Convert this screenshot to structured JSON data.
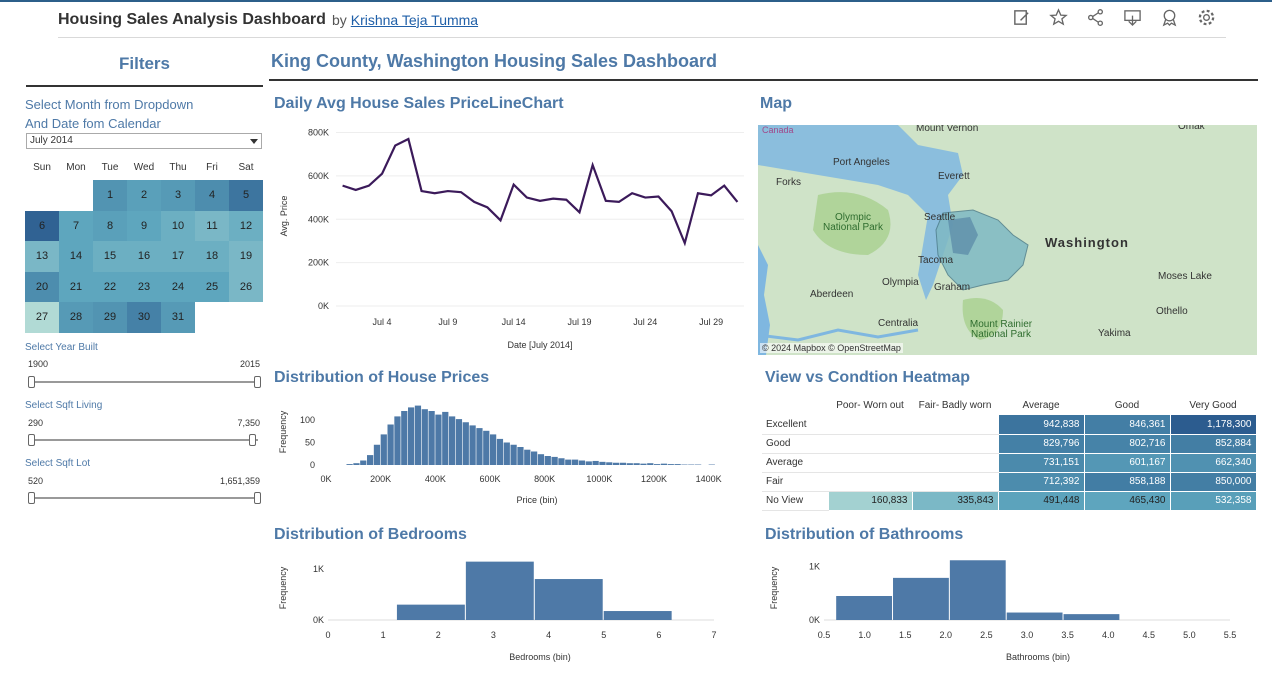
{
  "header": {
    "title": "Housing Sales Analysis Dashboard",
    "by": "by",
    "author": "Krishna Teja Tumma"
  },
  "toolbar": {
    "icons": [
      "edit-icon",
      "favorite-icon",
      "share-icon",
      "download-icon",
      "metrics-icon",
      "settings-icon"
    ]
  },
  "filters": {
    "title": "Filters",
    "month_label_line1": "Select Month from Dropdown",
    "month_label_line2": "And Date fom Calendar",
    "month_value": "July 2014",
    "calendar": {
      "days": [
        "Sun",
        "Mon",
        "Tue",
        "Wed",
        "Thu",
        "Fri",
        "Sat"
      ],
      "start_offset": 2,
      "dates": [
        "1",
        "2",
        "3",
        "4",
        "5",
        "6",
        "7",
        "8",
        "9",
        "10",
        "11",
        "12",
        "13",
        "14",
        "15",
        "16",
        "17",
        "18",
        "19",
        "20",
        "21",
        "22",
        "23",
        "24",
        "25",
        "26",
        "27",
        "28",
        "29",
        "30",
        "31"
      ],
      "intensity": [
        0.55,
        0.45,
        0.5,
        0.6,
        0.8,
        0.95,
        0.4,
        0.45,
        0.4,
        0.35,
        0.3,
        0.35,
        0.3,
        0.4,
        0.35,
        0.35,
        0.35,
        0.35,
        0.3,
        0.6,
        0.4,
        0.4,
        0.4,
        0.4,
        0.4,
        0.3,
        0.1,
        0.5,
        0.55,
        0.7,
        0.5
      ]
    },
    "year_built": {
      "label": "Select Year Built",
      "min": "1900",
      "max": "2015"
    },
    "sqft_living": {
      "label": "Select Sqft Living",
      "min": "290",
      "max": "7,350"
    },
    "sqft_lot": {
      "label": "Select Sqft Lot",
      "min": "520",
      "max": "1,651,359"
    }
  },
  "main": {
    "title": "King County, Washington Housing Sales Dashboard"
  },
  "titles": {
    "line": "Daily Avg House Sales PriceLineChart",
    "map": "Map",
    "prices": "Distribution of House Prices",
    "heatmap": "View vs Condtion Heatmap",
    "bedrooms": "Distribution of Bedrooms",
    "bathrooms": "Distribution of Bathrooms"
  },
  "map": {
    "labels": [
      {
        "text": "Canada",
        "cls": "sm"
      },
      {
        "text": "Mount Vernon"
      },
      {
        "text": "Omak"
      },
      {
        "text": "Port Angeles"
      },
      {
        "text": "Everett"
      },
      {
        "text": "Forks"
      },
      {
        "text": "Olympic National Park"
      },
      {
        "text": "Seattle"
      },
      {
        "text": "Washington"
      },
      {
        "text": "Tacoma"
      },
      {
        "text": "Olympia"
      },
      {
        "text": "Graham"
      },
      {
        "text": "Moses Lake"
      },
      {
        "text": "Aberdeen"
      },
      {
        "text": "Othello"
      },
      {
        "text": "Centralia"
      },
      {
        "text": "Mount Rainier National Park"
      },
      {
        "text": "Yakima"
      }
    ],
    "attribution": "© 2024 Mapbox  © OpenStreetMap",
    "colors": {
      "land": "#cfe3c8",
      "water": "#7fb7e0",
      "region": "#7fb9c4"
    }
  },
  "heatmap": {
    "columns": [
      "Poor- Worn out",
      "Fair- Badly worn",
      "Average",
      "Good",
      "Very Good"
    ],
    "rows": [
      {
        "label": "Excellent",
        "values": [
          "",
          "",
          "942,838",
          "846,361",
          "1,178,300"
        ]
      },
      {
        "label": "Good",
        "values": [
          "",
          "",
          "829,796",
          "802,716",
          "852,884"
        ]
      },
      {
        "label": "Average",
        "values": [
          "",
          "",
          "731,151",
          "601,167",
          "662,340"
        ]
      },
      {
        "label": "Fair",
        "values": [
          "",
          "",
          "712,392",
          "858,188",
          "850,000"
        ]
      },
      {
        "label": "No View",
        "values": [
          "160,833",
          "335,843",
          "491,448",
          "465,430",
          "532,358"
        ]
      }
    ]
  },
  "chart_data": [
    {
      "type": "line",
      "title": "Daily Avg House Sales PriceLineChart",
      "xlabel": "Date [July 2014]",
      "ylabel": "Avg. Price",
      "x": [
        1,
        2,
        3,
        4,
        5,
        6,
        7,
        8,
        9,
        10,
        11,
        12,
        13,
        14,
        15,
        16,
        17,
        18,
        19,
        20,
        21,
        22,
        23,
        24,
        25,
        26,
        27,
        28,
        29,
        30,
        31
      ],
      "x_ticks": [
        "Jul 4",
        "Jul 9",
        "Jul 14",
        "Jul 19",
        "Jul 24",
        "Jul 29"
      ],
      "x_tick_values": [
        4,
        9,
        14,
        19,
        24,
        29
      ],
      "y_ticks": [
        "0K",
        "200K",
        "400K",
        "600K",
        "800K"
      ],
      "y": [
        555000,
        535000,
        555000,
        610000,
        740000,
        770000,
        530000,
        520000,
        530000,
        525000,
        480000,
        455000,
        395000,
        560000,
        500000,
        485000,
        495000,
        490000,
        432000,
        650000,
        485000,
        480000,
        520000,
        500000,
        505000,
        437000,
        290000,
        520000,
        510000,
        555000,
        480000
      ],
      "ylim": [
        0,
        830000
      ],
      "color": "#3b1a5a"
    },
    {
      "type": "bar",
      "title": "Distribution of House Prices",
      "xlabel": "Price (bin)",
      "ylabel": "Frequency",
      "x_ticks": [
        "0K",
        "200K",
        "400K",
        "600K",
        "800K",
        "1000K",
        "1200K",
        "1400K"
      ],
      "y_ticks": [
        "0",
        "50",
        "100"
      ],
      "bin_start": 75000,
      "bin_width": 25000,
      "values": [
        2,
        4,
        10,
        22,
        45,
        68,
        90,
        108,
        120,
        128,
        132,
        124,
        120,
        112,
        118,
        108,
        102,
        95,
        88,
        82,
        76,
        68,
        58,
        50,
        45,
        40,
        34,
        30,
        24,
        20,
        18,
        15,
        12,
        12,
        10,
        8,
        9,
        7,
        6,
        5,
        5,
        4,
        4,
        3,
        4,
        2,
        3,
        2,
        2,
        1,
        1,
        1,
        0,
        1,
        0,
        0
      ],
      "ylim": [
        0,
        140
      ],
      "color": "#4e79a7"
    },
    {
      "type": "bar",
      "title": "Distribution of Bedrooms",
      "xlabel": "Bedrooms (bin)",
      "ylabel": "Frequency",
      "x_ticks": [
        "0",
        "1",
        "2",
        "3",
        "4",
        "5",
        "6",
        "7"
      ],
      "y_ticks": [
        "0K",
        "1K"
      ],
      "bins": [
        [
          1.25,
          2.5
        ],
        [
          2.5,
          3.75
        ],
        [
          3.75,
          5.0
        ],
        [
          5.0,
          6.25
        ]
      ],
      "values": [
        300,
        1140,
        800,
        175
      ],
      "ylim": [
        0,
        1250
      ],
      "color": "#4e79a7"
    },
    {
      "type": "bar",
      "title": "Distribution of Bathrooms",
      "xlabel": "Bathrooms (bin)",
      "ylabel": "Frequency",
      "x_ticks": [
        "0.5",
        "1.0",
        "1.5",
        "2.0",
        "2.5",
        "3.0",
        "3.5",
        "4.0",
        "4.5",
        "5.0",
        "5.5"
      ],
      "y_ticks": [
        "0K",
        "1K"
      ],
      "bins": [
        [
          0.65,
          1.35
        ],
        [
          1.35,
          2.05
        ],
        [
          2.05,
          2.75
        ],
        [
          2.75,
          3.45
        ],
        [
          3.45,
          4.15
        ]
      ],
      "values": [
        450,
        790,
        1120,
        140,
        110
      ],
      "ylim": [
        0,
        1200
      ],
      "color": "#4e79a7"
    }
  ]
}
